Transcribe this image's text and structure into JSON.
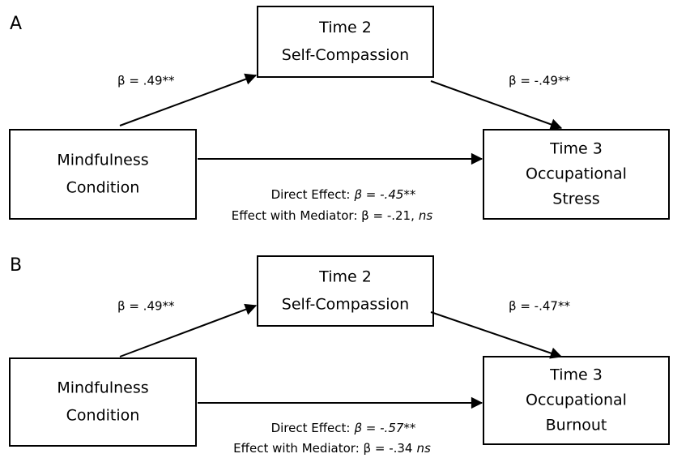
{
  "panels": [
    {
      "label": "A",
      "mediator": [
        "Time 2",
        "Self-Compassion"
      ],
      "predictor": [
        "Mindfulness",
        "Condition"
      ],
      "outcome": [
        "Time 3",
        "Occupational",
        "Stress"
      ],
      "path_a": "β = .49**",
      "path_b": "β = -.49**",
      "direct_effect": {
        "label": "Direct Effect:",
        "value": "β = -.45**"
      },
      "mediated_effect": {
        "label": "Effect with Mediator: β = -.21,",
        "note": "ns"
      }
    },
    {
      "label": "B",
      "mediator": [
        "Time 2",
        "Self-Compassion"
      ],
      "predictor": [
        "Mindfulness",
        "Condition"
      ],
      "outcome": [
        "Time 3",
        "Occupational",
        "Burnout"
      ],
      "path_a": "β = .49**",
      "path_b": "β = -.47**",
      "direct_effect": {
        "label": "Direct Effect:",
        "value": "β = -.57**"
      },
      "mediated_effect": {
        "label": "Effect with Mediator: β = -.34",
        "note": "ns"
      }
    }
  ]
}
